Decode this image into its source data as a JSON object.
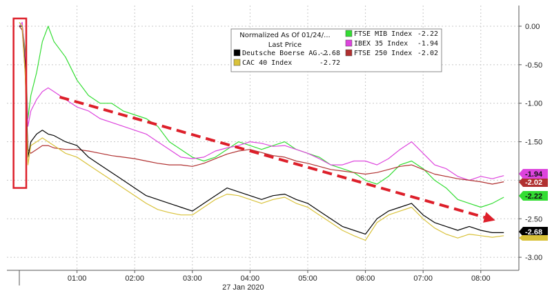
{
  "chart_data": {
    "type": "line",
    "title": "",
    "xlabel": "",
    "ylabel": "",
    "date_label": "27 Jan 2020",
    "x_ticks": [
      "01:00",
      "02:00",
      "03:00",
      "04:00",
      "05:00",
      "06:00",
      "07:00",
      "08:00"
    ],
    "y_ticks": [
      0.0,
      -0.5,
      -1.0,
      -1.5,
      -2.0,
      -2.5,
      -3.0
    ],
    "y_tick_labels": [
      "0.00",
      "-0.50",
      "-1.00",
      "-1.50",
      "-2.00",
      "-2.50",
      "-3.00"
    ],
    "xlim_hours": [
      -0.1,
      8.55
    ],
    "ylim": [
      -3.2,
      0.17
    ],
    "legend": {
      "title_line1": "Normalized As Of 01/24/...",
      "title_line2": "Last Price",
      "placement": "top-center"
    },
    "colors": {
      "dax": "#000000",
      "cac": "#d9c23a",
      "ftse_mib": "#33dd33",
      "ibex": "#dd44dd",
      "ftse250": "#b03030",
      "annotation_box": "#dd1f2a",
      "trend_arrow": "#dd1f2a"
    },
    "series": [
      {
        "key": "ftse_mib",
        "name": "FTSE MIB Index",
        "last": "-2.22",
        "badge": "-2.22",
        "x": [
          0,
          0.05,
          0.1,
          0.15,
          0.2,
          0.3,
          0.4,
          0.5,
          0.6,
          0.8,
          1.0,
          1.2,
          1.4,
          1.6,
          1.8,
          2.0,
          2.2,
          2.4,
          2.6,
          2.8,
          3.0,
          3.2,
          3.4,
          3.6,
          3.8,
          4.0,
          4.2,
          4.4,
          4.6,
          4.8,
          5.0,
          5.2,
          5.4,
          5.6,
          5.8,
          6.0,
          6.2,
          6.4,
          6.6,
          6.8,
          7.0,
          7.2,
          7.4,
          7.6,
          7.8,
          8.0,
          8.2,
          8.4
        ],
        "values": [
          0.05,
          0.0,
          -0.3,
          -1.2,
          -0.9,
          -0.6,
          -0.2,
          0.0,
          -0.2,
          -0.4,
          -0.7,
          -0.9,
          -1.0,
          -1.0,
          -1.1,
          -1.15,
          -1.2,
          -1.3,
          -1.5,
          -1.6,
          -1.7,
          -1.75,
          -1.7,
          -1.6,
          -1.5,
          -1.55,
          -1.6,
          -1.55,
          -1.5,
          -1.6,
          -1.65,
          -1.7,
          -1.8,
          -1.85,
          -1.9,
          -2.0,
          -2.05,
          -1.95,
          -1.8,
          -1.75,
          -1.85,
          -2.0,
          -2.1,
          -2.25,
          -2.3,
          -2.35,
          -2.3,
          -2.22
        ]
      },
      {
        "key": "ibex",
        "name": "IBEX 35 Index",
        "last": "-1.94",
        "badge": "-1.94",
        "x": [
          0,
          0.05,
          0.1,
          0.15,
          0.2,
          0.3,
          0.4,
          0.5,
          0.6,
          0.8,
          1.0,
          1.2,
          1.4,
          1.6,
          1.8,
          2.0,
          2.2,
          2.4,
          2.6,
          2.8,
          3.0,
          3.2,
          3.4,
          3.6,
          3.8,
          4.0,
          4.2,
          4.4,
          4.6,
          4.8,
          5.0,
          5.2,
          5.4,
          5.6,
          5.8,
          6.0,
          6.2,
          6.4,
          6.6,
          6.8,
          7.0,
          7.2,
          7.4,
          7.6,
          7.8,
          8.0,
          8.2,
          8.4
        ],
        "values": [
          0.0,
          0.05,
          -0.4,
          -1.3,
          -1.1,
          -0.95,
          -0.85,
          -0.8,
          -0.85,
          -0.95,
          -1.05,
          -1.1,
          -1.2,
          -1.25,
          -1.3,
          -1.35,
          -1.4,
          -1.5,
          -1.6,
          -1.7,
          -1.72,
          -1.7,
          -1.62,
          -1.58,
          -1.55,
          -1.5,
          -1.52,
          -1.56,
          -1.55,
          -1.6,
          -1.65,
          -1.72,
          -1.8,
          -1.8,
          -1.75,
          -1.75,
          -1.8,
          -1.72,
          -1.6,
          -1.5,
          -1.65,
          -1.8,
          -1.85,
          -1.95,
          -2.0,
          -1.95,
          -1.98,
          -1.94
        ]
      },
      {
        "key": "ftse250",
        "name": "FTSE 250 Index",
        "last": "-2.02",
        "badge": "-2.02",
        "x": [
          0,
          0.05,
          0.1,
          0.15,
          0.2,
          0.3,
          0.4,
          0.5,
          0.6,
          0.8,
          1.0,
          1.2,
          1.4,
          1.6,
          1.8,
          2.0,
          2.2,
          2.4,
          2.6,
          2.8,
          3.0,
          3.2,
          3.4,
          3.6,
          3.8,
          4.0,
          4.2,
          4.4,
          4.6,
          4.8,
          5.0,
          5.2,
          5.4,
          5.6,
          5.8,
          6.0,
          6.2,
          6.4,
          6.6,
          6.8,
          7.0,
          7.2,
          7.4,
          7.6,
          7.8,
          8.0,
          8.2,
          8.4
        ],
        "values": [
          0.0,
          -0.05,
          -0.6,
          -1.6,
          -1.65,
          -1.6,
          -1.55,
          -1.55,
          -1.58,
          -1.6,
          -1.6,
          -1.62,
          -1.65,
          -1.68,
          -1.7,
          -1.72,
          -1.75,
          -1.78,
          -1.8,
          -1.8,
          -1.82,
          -1.78,
          -1.72,
          -1.66,
          -1.62,
          -1.6,
          -1.64,
          -1.68,
          -1.7,
          -1.75,
          -1.78,
          -1.82,
          -1.86,
          -1.88,
          -1.9,
          -1.92,
          -1.9,
          -1.86,
          -1.82,
          -1.8,
          -1.86,
          -1.92,
          -1.95,
          -1.98,
          -2.0,
          -2.02,
          -2.05,
          -2.02
        ]
      },
      {
        "key": "dax",
        "name": "Deutsche Boerse AG...",
        "last": "-2.68",
        "badge": "-2.68",
        "x": [
          0,
          0.05,
          0.1,
          0.15,
          0.2,
          0.3,
          0.4,
          0.5,
          0.6,
          0.8,
          1.0,
          1.2,
          1.4,
          1.6,
          1.8,
          2.0,
          2.2,
          2.4,
          2.6,
          2.8,
          3.0,
          3.2,
          3.4,
          3.6,
          3.8,
          4.0,
          4.2,
          4.4,
          4.6,
          4.8,
          5.0,
          5.2,
          5.4,
          5.6,
          5.8,
          6.0,
          6.2,
          6.4,
          6.6,
          6.8,
          7.0,
          7.2,
          7.4,
          7.6,
          7.8,
          8.0,
          8.2,
          8.4
        ],
        "values": [
          0.0,
          0.0,
          -0.5,
          -1.7,
          -1.5,
          -1.4,
          -1.35,
          -1.4,
          -1.42,
          -1.5,
          -1.55,
          -1.7,
          -1.8,
          -1.9,
          -2.0,
          -2.1,
          -2.2,
          -2.25,
          -2.3,
          -2.35,
          -2.4,
          -2.3,
          -2.2,
          -2.1,
          -2.15,
          -2.2,
          -2.25,
          -2.2,
          -2.18,
          -2.25,
          -2.3,
          -2.4,
          -2.5,
          -2.6,
          -2.65,
          -2.7,
          -2.5,
          -2.4,
          -2.35,
          -2.3,
          -2.45,
          -2.55,
          -2.6,
          -2.65,
          -2.6,
          -2.65,
          -2.68,
          -2.68
        ]
      },
      {
        "key": "cac",
        "name": "CAC 40 Index",
        "last": "-2.72",
        "badge": "",
        "x": [
          0,
          0.05,
          0.1,
          0.15,
          0.2,
          0.3,
          0.4,
          0.5,
          0.6,
          0.8,
          1.0,
          1.2,
          1.4,
          1.6,
          1.8,
          2.0,
          2.2,
          2.4,
          2.6,
          2.8,
          3.0,
          3.2,
          3.4,
          3.6,
          3.8,
          4.0,
          4.2,
          4.4,
          4.6,
          4.8,
          5.0,
          5.2,
          5.4,
          5.6,
          5.8,
          6.0,
          6.2,
          6.4,
          6.6,
          6.8,
          7.0,
          7.2,
          7.4,
          7.6,
          7.8,
          8.0,
          8.2,
          8.4
        ],
        "values": [
          0.05,
          0.0,
          -0.6,
          -1.8,
          -1.55,
          -1.5,
          -1.45,
          -1.5,
          -1.55,
          -1.65,
          -1.7,
          -1.8,
          -1.9,
          -2.0,
          -2.1,
          -2.2,
          -2.3,
          -2.38,
          -2.42,
          -2.45,
          -2.45,
          -2.35,
          -2.25,
          -2.18,
          -2.2,
          -2.25,
          -2.3,
          -2.25,
          -2.22,
          -2.3,
          -2.35,
          -2.45,
          -2.55,
          -2.65,
          -2.72,
          -2.78,
          -2.55,
          -2.45,
          -2.4,
          -2.35,
          -2.5,
          -2.62,
          -2.7,
          -2.75,
          -2.7,
          -2.72,
          -2.74,
          -2.72
        ]
      }
    ],
    "annotations": [
      {
        "type": "box",
        "x_range_hours": [
          -0.1,
          0.12
        ],
        "y_range": [
          0.1,
          -2.1
        ]
      },
      {
        "type": "arrow",
        "from": [
          0.7,
          -0.92
        ],
        "to": [
          8.25,
          -2.52
        ]
      }
    ]
  }
}
